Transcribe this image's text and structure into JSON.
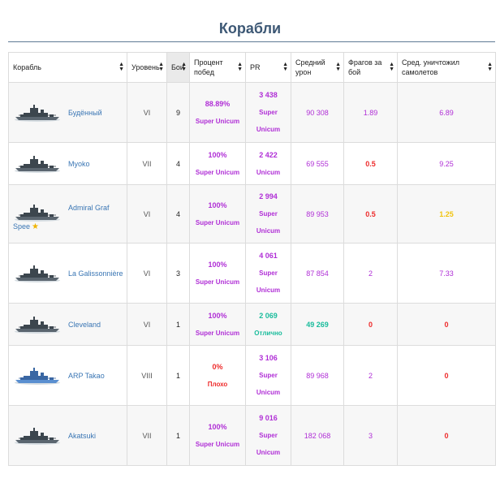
{
  "page": {
    "title": "Корабли"
  },
  "columns": [
    {
      "label": "Корабль"
    },
    {
      "label": "Уровень"
    },
    {
      "label": "Бои"
    },
    {
      "label": "Процент побед"
    },
    {
      "label": "PR"
    },
    {
      "label": "Средний урон"
    },
    {
      "label": "Фрагов за бой"
    },
    {
      "label": "Сред. уничтожил самолетов"
    }
  ],
  "rows": [
    {
      "name": "Будённый",
      "name2": "",
      "star": false,
      "tier": "VI",
      "battles": "9",
      "winrate": "88.89%",
      "winrate_tag": "Super Unicum",
      "pr": "3 438",
      "pr_tag1": "Super",
      "pr_tag2": "Unicum",
      "damage": "90 308",
      "frags": "1.89",
      "planes": "6.89",
      "colors": {
        "win": "#b02fd6",
        "pr": "#b02fd6",
        "dmg": "#b02fd6",
        "frags": "#b02fd6",
        "planes": "#b02fd6"
      },
      "pr_bold": false,
      "dmg_bold": false,
      "frags_bold": false,
      "planes_bold": false
    },
    {
      "name": "Myoko",
      "name2": "",
      "star": false,
      "tier": "VII",
      "battles": "4",
      "winrate": "100%",
      "winrate_tag": "Super Unicum",
      "pr": "2 422",
      "pr_tag1": "Unicum",
      "pr_tag2": "",
      "damage": "69 555",
      "frags": "0.5",
      "planes": "9.25",
      "colors": {
        "win": "#b02fd6",
        "pr": "#b02fd6",
        "dmg": "#b02fd6",
        "frags": "#ee2b2b",
        "planes": "#b02fd6"
      },
      "pr_bold": false,
      "dmg_bold": false,
      "frags_bold": true,
      "planes_bold": false
    },
    {
      "name": "Admiral Graf",
      "name2": "Spee",
      "star": true,
      "tier": "VI",
      "battles": "4",
      "winrate": "100%",
      "winrate_tag": "Super Unicum",
      "pr": "2 994",
      "pr_tag1": "Super",
      "pr_tag2": "Unicum",
      "damage": "89 953",
      "frags": "0.5",
      "planes": "1.25",
      "colors": {
        "win": "#b02fd6",
        "pr": "#b02fd6",
        "dmg": "#b02fd6",
        "frags": "#ee2b2b",
        "planes": "#f1c40f"
      },
      "pr_bold": true,
      "dmg_bold": false,
      "frags_bold": true,
      "planes_bold": true
    },
    {
      "name": "La Galissonnière",
      "name2": "",
      "star": false,
      "tier": "VI",
      "battles": "3",
      "winrate": "100%",
      "winrate_tag": "Super Unicum",
      "pr": "4 061",
      "pr_tag1": "Super",
      "pr_tag2": "Unicum",
      "damage": "87 854",
      "frags": "2",
      "planes": "7.33",
      "colors": {
        "win": "#b02fd6",
        "pr": "#b02fd6",
        "dmg": "#b02fd6",
        "frags": "#b02fd6",
        "planes": "#b02fd6"
      },
      "pr_bold": false,
      "dmg_bold": false,
      "frags_bold": false,
      "planes_bold": false
    },
    {
      "name": "Cleveland",
      "name2": "",
      "star": false,
      "tier": "VI",
      "battles": "1",
      "winrate": "100%",
      "winrate_tag": "Super Unicum",
      "pr": "2 069",
      "pr_tag1": "Отлично",
      "pr_tag2": "",
      "damage": "49 269",
      "frags": "0",
      "planes": "0",
      "colors": {
        "win": "#b02fd6",
        "pr": "#1abc9c",
        "dmg": "#1abc9c",
        "frags": "#ee2b2b",
        "planes": "#ee2b2b"
      },
      "pr_bold": true,
      "dmg_bold": true,
      "frags_bold": true,
      "planes_bold": true
    },
    {
      "name": "ARP Takao",
      "name2": "",
      "star": false,
      "tier": "VIII",
      "battles": "1",
      "winrate": "0%",
      "winrate_tag": "Плохо",
      "pr": "3 106",
      "pr_tag1": "Super",
      "pr_tag2": "Unicum",
      "damage": "89 968",
      "frags": "2",
      "planes": "0",
      "colors": {
        "win": "#ee2b2b",
        "pr": "#b02fd6",
        "dmg": "#b02fd6",
        "frags": "#b02fd6",
        "planes": "#ee2b2b"
      },
      "pr_bold": false,
      "dmg_bold": false,
      "frags_bold": false,
      "planes_bold": true
    },
    {
      "name": "Akatsuki",
      "name2": "",
      "star": false,
      "tier": "VII",
      "battles": "1",
      "winrate": "100%",
      "winrate_tag": "Super Unicum",
      "pr": "9 016",
      "pr_tag1": "Super",
      "pr_tag2": "Unicum",
      "damage": "182 068",
      "frags": "3",
      "planes": "0",
      "colors": {
        "win": "#b02fd6",
        "pr": "#b02fd6",
        "dmg": "#b02fd6",
        "frags": "#b02fd6",
        "planes": "#ee2b2b"
      },
      "pr_bold": false,
      "dmg_bold": false,
      "frags_bold": false,
      "planes_bold": true
    }
  ]
}
